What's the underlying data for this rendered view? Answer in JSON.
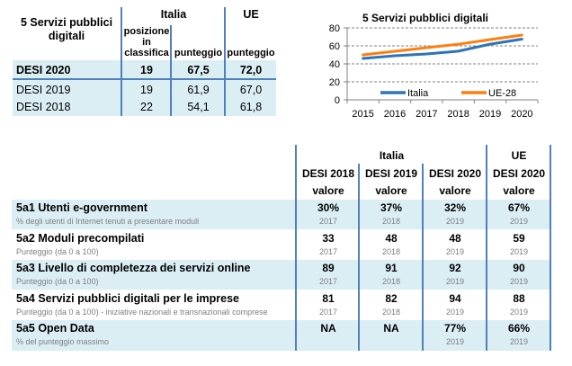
{
  "summary_table": {
    "title_line1": "5 Servizi pubblici",
    "title_line2": "digitali",
    "group_italia": "Italia",
    "group_ue": "UE",
    "col_posizione_line1": "posizione",
    "col_posizione_line2": "in",
    "col_posizione_line3": "classifica",
    "col_punteggio_it": "punteggio",
    "col_punteggio_ue": "punteggio",
    "rows": [
      {
        "label": "DESI 2020",
        "posizione": "19",
        "punteggio_it": "67,5",
        "punteggio_ue": "72,0"
      },
      {
        "label": "DESI 2019",
        "posizione": "19",
        "punteggio_it": "61,9",
        "punteggio_ue": "67,0"
      },
      {
        "label": "DESI 2018",
        "posizione": "22",
        "punteggio_it": "54,1",
        "punteggio_ue": "61,8"
      }
    ]
  },
  "chart_data": {
    "type": "line",
    "title": "5 Servizi pubblici digitali",
    "x": [
      "2015",
      "2016",
      "2017",
      "2018",
      "2019",
      "2020"
    ],
    "series": [
      {
        "name": "Italia",
        "color": "#2e75b6",
        "values": [
          46,
          49,
          51,
          54.1,
          61.9,
          67.5
        ]
      },
      {
        "name": "UE-28",
        "color": "#ff7f0e",
        "values": [
          50,
          54,
          58,
          61.8,
          67.0,
          72.0
        ]
      }
    ],
    "yticks": [
      "0",
      "20",
      "40",
      "60",
      "80"
    ],
    "ylim": [
      0,
      80
    ],
    "xlabel": "",
    "ylabel": "",
    "grid": "horizontal dashed",
    "legend": "bottom-inside"
  },
  "detail_table": {
    "group_italia": "Italia",
    "group_ue": "UE",
    "columns": [
      {
        "year": "DESI 2018",
        "sub": "valore"
      },
      {
        "year": "DESI 2019",
        "sub": "valore"
      },
      {
        "year": "DESI 2020",
        "sub": "valore"
      },
      {
        "year": "DESI 2020",
        "sub": "valore"
      }
    ],
    "rows": [
      {
        "title": "5a1 Utenti e-government",
        "subtitle": "% degli utenti di Internet tenuti a presentare moduli",
        "values": [
          "30%",
          "37%",
          "32%",
          "67%"
        ],
        "years": [
          "2017",
          "2018",
          "2019",
          "2019"
        ]
      },
      {
        "title": "5a2 Moduli precompilati",
        "subtitle": "Punteggio (da 0 a 100)",
        "values": [
          "33",
          "48",
          "48",
          "59"
        ],
        "years": [
          "2017",
          "2018",
          "2019",
          "2019"
        ]
      },
      {
        "title": "5a3 Livello di completezza dei servizi online",
        "subtitle": "Punteggio (da 0 a 100)",
        "values": [
          "89",
          "91",
          "92",
          "90"
        ],
        "years": [
          "2017",
          "2018",
          "2019",
          "2019"
        ]
      },
      {
        "title": "5a4 Servizi pubblici digitali per le imprese",
        "subtitle": "Punteggio (da 0 a 100) - iniziative nazionali e transnazionali comprese",
        "values": [
          "81",
          "82",
          "94",
          "88"
        ],
        "years": [
          "2017",
          "2018",
          "2019",
          "2019"
        ]
      },
      {
        "title": "5a5 Open Data",
        "subtitle": "% del punteggio massimo",
        "values": [
          "NA",
          "NA",
          "77%",
          "66%"
        ],
        "years": [
          "",
          "",
          "2019",
          "2019"
        ]
      }
    ]
  }
}
